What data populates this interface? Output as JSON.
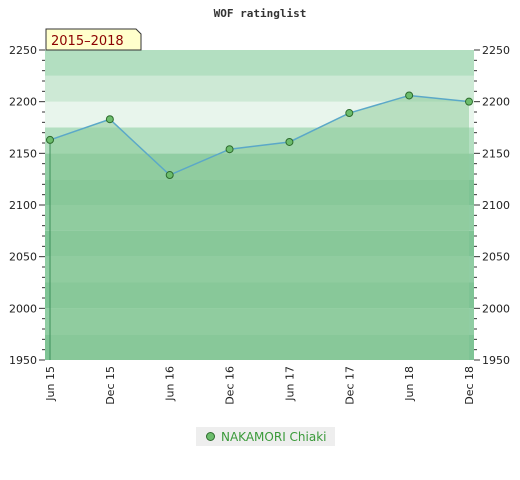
{
  "chart_data": {
    "type": "area",
    "title": "WOF ratinglist",
    "period_label": "2015–2018",
    "x": [
      "Jun 15",
      "Dec 15",
      "Jun 16",
      "Dec 16",
      "Jun 17",
      "Dec 17",
      "Jun 18",
      "Dec 18"
    ],
    "series": [
      {
        "name": "NAKAMORI Chiaki",
        "values": [
          2163,
          2183,
          2129,
          2154,
          2161,
          2189,
          2206,
          2200
        ]
      }
    ],
    "ylim": [
      1950,
      2250
    ],
    "yticks": [
      1950,
      2000,
      2050,
      2100,
      2150,
      2200,
      2250
    ],
    "legend_position": "bottom",
    "colors": {
      "line": "#5ba8c8",
      "marker_fill": "#6cbd6c",
      "marker_stroke": "#2d6b2d",
      "area_fill": "#8fcc9d",
      "band_light_1": "#b3dfc1",
      "band_light_2": "#cde9d5",
      "band_light_3": "#e8f5ec",
      "band_dark_1": "#7fc495",
      "band_dark_2": "#90cda3"
    }
  }
}
